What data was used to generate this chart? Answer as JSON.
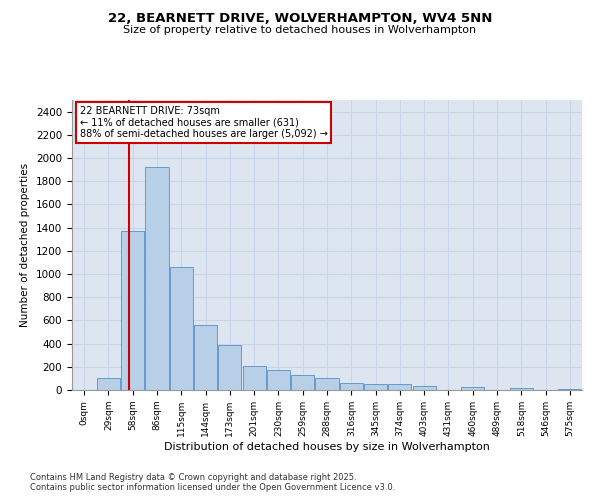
{
  "title_line1": "22, BEARNETT DRIVE, WOLVERHAMPTON, WV4 5NN",
  "title_line2": "Size of property relative to detached houses in Wolverhampton",
  "xlabel": "Distribution of detached houses by size in Wolverhampton",
  "ylabel": "Number of detached properties",
  "categories": [
    "0sqm",
    "29sqm",
    "58sqm",
    "86sqm",
    "115sqm",
    "144sqm",
    "173sqm",
    "201sqm",
    "230sqm",
    "259sqm",
    "288sqm",
    "316sqm",
    "345sqm",
    "374sqm",
    "403sqm",
    "431sqm",
    "460sqm",
    "489sqm",
    "518sqm",
    "546sqm",
    "575sqm"
  ],
  "bar_values": [
    0,
    100,
    1370,
    1920,
    1060,
    560,
    390,
    210,
    175,
    130,
    105,
    60,
    50,
    50,
    35,
    0,
    30,
    0,
    20,
    0,
    5
  ],
  "bar_color": "#b8cfe8",
  "bar_edge_color": "#6699cc",
  "grid_color": "#c8d4e8",
  "background_color": "#dde6f0",
  "red_line_x": 1.85,
  "annotation_text": "22 BEARNETT DRIVE: 73sqm\n← 11% of detached houses are smaller (631)\n88% of semi-detached houses are larger (5,092) →",
  "annotation_box_color": "#ffffff",
  "annotation_box_edge": "#cc0000",
  "ylim": [
    0,
    2500
  ],
  "yticks": [
    0,
    200,
    400,
    600,
    800,
    1000,
    1200,
    1400,
    1600,
    1800,
    2000,
    2200,
    2400
  ],
  "footnote1": "Contains HM Land Registry data © Crown copyright and database right 2025.",
  "footnote2": "Contains public sector information licensed under the Open Government Licence v3.0."
}
